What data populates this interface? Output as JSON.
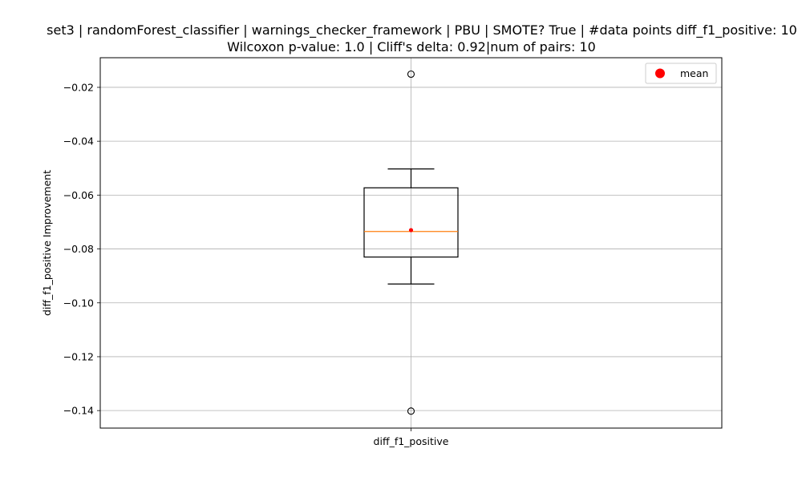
{
  "chart_data": {
    "type": "box",
    "title": "set3 | randomForest_classifier | warnings_checker_framework | PBU | SMOTE? True | #data points diff_f1_positive: 10",
    "subtitle": "Wilcoxon p-value: 1.0 | Cliff's delta: 0.92|num of pairs: 10",
    "xlabel": "",
    "ylabel": "diff_f1_positive Improvement",
    "categories": [
      "diff_f1_positive"
    ],
    "boxes": [
      {
        "name": "diff_f1_positive",
        "whisker_low": -0.093,
        "q1": -0.083,
        "median": -0.0735,
        "q3": -0.0573,
        "whisker_high": -0.0503,
        "mean": -0.073,
        "outliers": [
          -0.0151,
          -0.1402
        ]
      }
    ],
    "ylim": [
      -0.1465,
      -0.009
    ],
    "yticks": [
      -0.02,
      -0.04,
      -0.06,
      -0.08,
      -0.1,
      -0.12,
      -0.14
    ],
    "ytick_labels": [
      "−0.02",
      "−0.04",
      "−0.06",
      "−0.08",
      "−0.10",
      "−0.12",
      "−0.14"
    ],
    "grid": true,
    "legend": {
      "position": "top-right",
      "entries": [
        {
          "label": "mean",
          "color": "#ff0000"
        }
      ]
    },
    "colors": {
      "box": "#000000",
      "median": "#ff7f0e",
      "mean": "#ff0000",
      "grid": "#b0b0b0"
    }
  }
}
